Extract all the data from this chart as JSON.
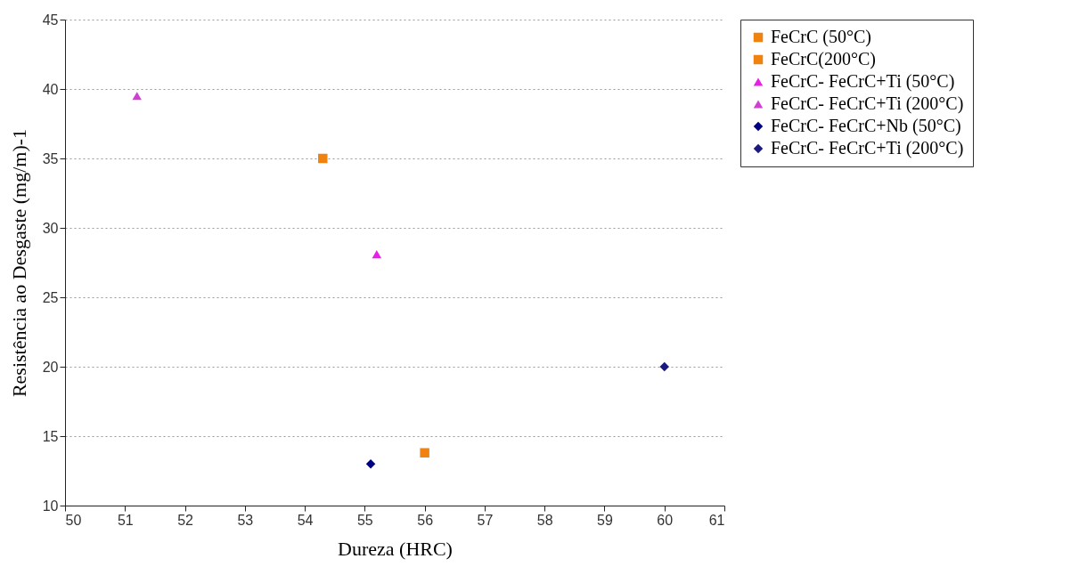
{
  "chart_data": {
    "type": "scatter",
    "xlabel": "Dureza (HRC)",
    "ylabel": "Resistência ao Desgaste (mg/m)-1",
    "xlim": [
      50,
      61
    ],
    "xticks": [
      50,
      51,
      52,
      53,
      54,
      55,
      56,
      57,
      58,
      59,
      60,
      61
    ],
    "ylim": [
      10,
      45
    ],
    "yticks": [
      10,
      15,
      20,
      25,
      30,
      35,
      40,
      45
    ],
    "grid": "y",
    "legend": "right",
    "series": [
      {
        "name": "FeCrC (50°C)",
        "color": "#f0820f",
        "marker": "square",
        "x": [
          56.0
        ],
        "values": [
          13.8
        ]
      },
      {
        "name": "FeCrC(200°C)",
        "color": "#f0820f",
        "marker": "square",
        "x": [
          54.3
        ],
        "values": [
          35
        ]
      },
      {
        "name": "FeCrC- FeCrC+Ti (50°C)",
        "color": "#e620e6",
        "marker": "triangle",
        "x": [
          55.2
        ],
        "values": [
          28.1
        ]
      },
      {
        "name": "FeCrC- FeCrC+Ti (200°C)",
        "color": "#d040d0",
        "marker": "triangle",
        "x": [
          51.2
        ],
        "values": [
          39.5
        ]
      },
      {
        "name": "FeCrC- FeCrC+Nb (50°C)",
        "color": "#000080",
        "marker": "diamond",
        "x": [
          55.1
        ],
        "values": [
          13
        ]
      },
      {
        "name": "FeCrC- FeCrC+Ti (200°C)",
        "color": "#1a1a80",
        "marker": "diamond",
        "x": [
          60.0
        ],
        "values": [
          20
        ]
      }
    ]
  }
}
